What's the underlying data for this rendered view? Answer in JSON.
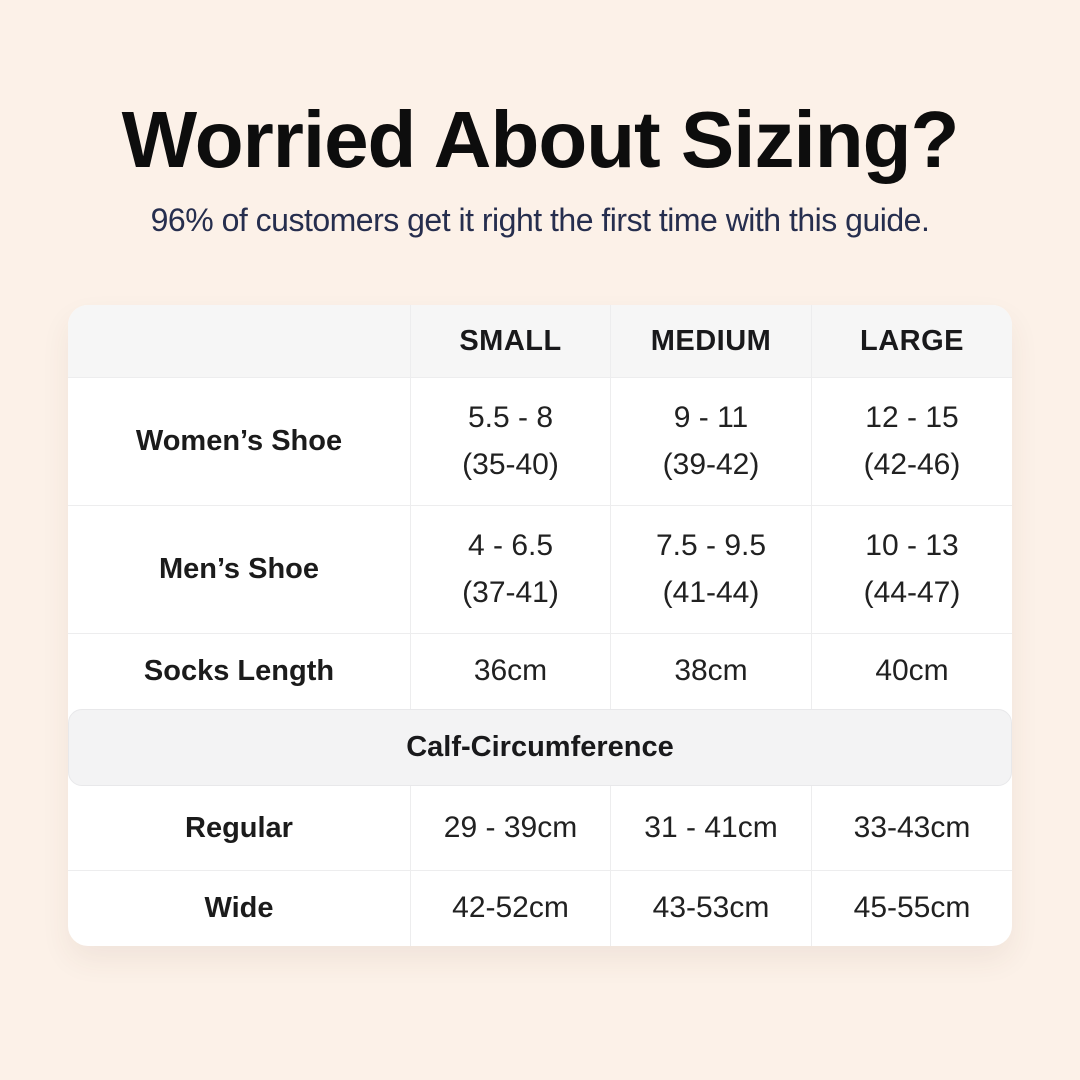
{
  "page": {
    "title": "Worried About Sizing?",
    "subtitle": "96% of customers get it right the first time with this guide."
  },
  "colors": {
    "background": "#fcf1e8",
    "title": "#0d0d0d",
    "subtitle_navy": "#262e4e",
    "card": "#ffffff",
    "header_band": "#f6f6f6",
    "section_band": "#f3f3f4",
    "divider": "#ededee",
    "text": "#1b1b1b"
  },
  "table": {
    "column_headers": [
      "SMALL",
      "MEDIUM",
      "LARGE"
    ],
    "shoe_rows": [
      {
        "label": "Women’s Shoe",
        "small": "5.5 - 8",
        "small_eu": "(35-40)",
        "medium": "9 - 11",
        "medium_eu": "(39-42)",
        "large": "12 - 15",
        "large_eu": "(42-46)"
      },
      {
        "label": "Men’s Shoe",
        "small": "4 - 6.5",
        "small_eu": "(37-41)",
        "medium": "7.5 - 9.5",
        "medium_eu": "(41-44)",
        "large": "10 - 13",
        "large_eu": "(44-47)"
      }
    ],
    "socks_row": {
      "label": "Socks Length",
      "small": "36cm",
      "medium": "38cm",
      "large": "40cm"
    },
    "section_header": "Calf-Circumference",
    "calf_rows": [
      {
        "label": "Regular",
        "small": "29 - 39cm",
        "medium": "31 - 41cm",
        "large": "33-43cm"
      },
      {
        "label": "Wide",
        "small": "42-52cm",
        "medium": "43-53cm",
        "large": "45-55cm"
      }
    ]
  }
}
